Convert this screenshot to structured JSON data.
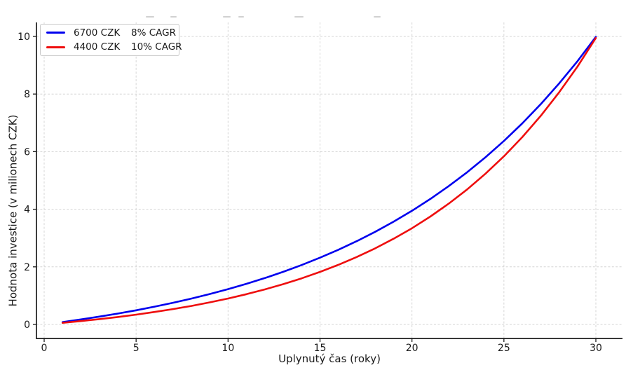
{
  "chart_data": {
    "type": "line",
    "title": "",
    "xlabel": "Uplynutý čas (roky)",
    "ylabel": "Hodnota investice (v milionech CZK)",
    "x_ticks": [
      0,
      5,
      10,
      15,
      20,
      25,
      30
    ],
    "y_ticks": [
      0,
      2,
      4,
      6,
      8,
      10
    ],
    "xlim": [
      -0.45,
      31.45
    ],
    "ylim": [
      -0.45,
      10.48
    ],
    "grid": true,
    "grid_style": "dashed",
    "legend_position": "upper-left",
    "x": [
      1,
      2,
      3,
      4,
      5,
      6,
      7,
      8,
      9,
      10,
      11,
      12,
      13,
      14,
      15,
      16,
      17,
      18,
      19,
      20,
      21,
      22,
      23,
      24,
      25,
      26,
      27,
      28,
      29,
      30
    ],
    "series": [
      {
        "name": "6700 CZK 8% CAGR",
        "amount_label": "6700 CZK",
        "cagr_label": "8% CAGR",
        "color": "#0000ee",
        "values": [
          0.083,
          0.174,
          0.272,
          0.377,
          0.492,
          0.617,
          0.751,
          0.897,
          1.055,
          1.226,
          1.411,
          1.611,
          1.828,
          2.064,
          2.318,
          2.594,
          2.893,
          3.216,
          3.567,
          3.946,
          4.357,
          4.802,
          5.284,
          5.806,
          6.371,
          6.984,
          7.647,
          8.365,
          9.142,
          9.985
        ]
      },
      {
        "name": "4400 CZK 10% CAGR",
        "amount_label": "4400 CZK",
        "cagr_label": "10% CAGR",
        "color": "#ee0e0e",
        "values": [
          0.055,
          0.116,
          0.184,
          0.258,
          0.341,
          0.432,
          0.532,
          0.643,
          0.766,
          0.901,
          1.051,
          1.216,
          1.399,
          1.601,
          1.824,
          2.07,
          2.342,
          2.643,
          2.975,
          3.341,
          3.746,
          4.194,
          4.688,
          5.235,
          5.838,
          6.505,
          7.241,
          8.055,
          8.953,
          9.946
        ]
      }
    ]
  }
}
